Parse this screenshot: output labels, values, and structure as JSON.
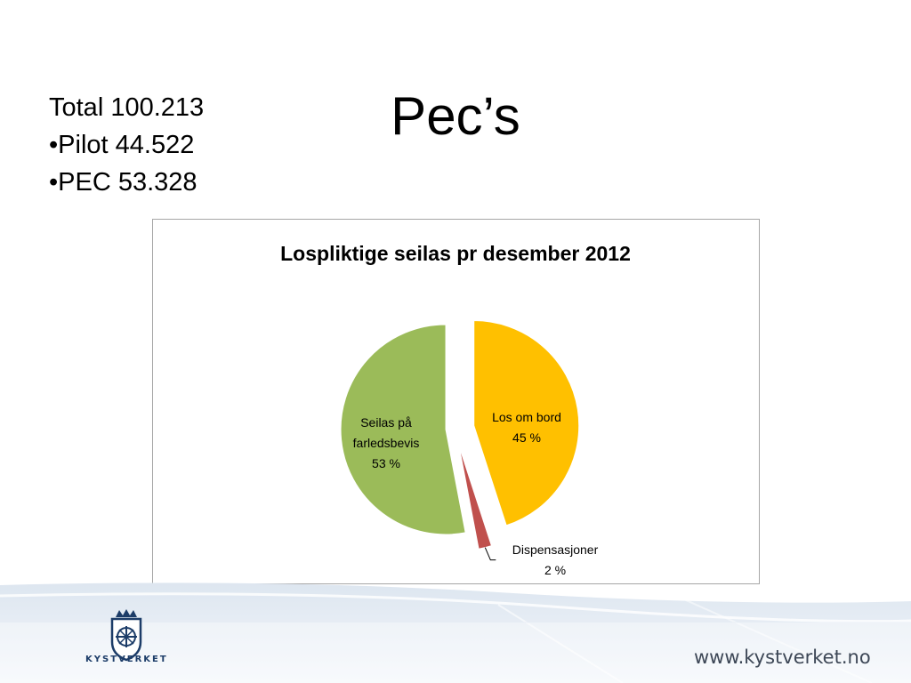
{
  "slide": {
    "title": "Pec’s",
    "stats": [
      "Total 100.213",
      "•Pilot 44.522",
      "•PEC 53.328"
    ]
  },
  "chart_data": {
    "type": "pie",
    "title": "Lospliktige seilas pr desember 2012",
    "slices": [
      {
        "label": "Los om bord",
        "value": 45,
        "value_label": "45 %",
        "color": "#ffc000"
      },
      {
        "label": "Dispensasjoner",
        "value": 2,
        "value_label": "2 %",
        "color": "#c0504d"
      },
      {
        "label": "Seilas på farledsbevis",
        "value": 53,
        "value_label": "53 %",
        "color": "#9bbb59"
      }
    ],
    "exploded": true,
    "legend": "none"
  },
  "footer": {
    "logo_text": "KYSTVERKET",
    "website": "www.kystverket.no",
    "logo_color": "#1c3c68",
    "band_color": "#c8d6e5"
  }
}
